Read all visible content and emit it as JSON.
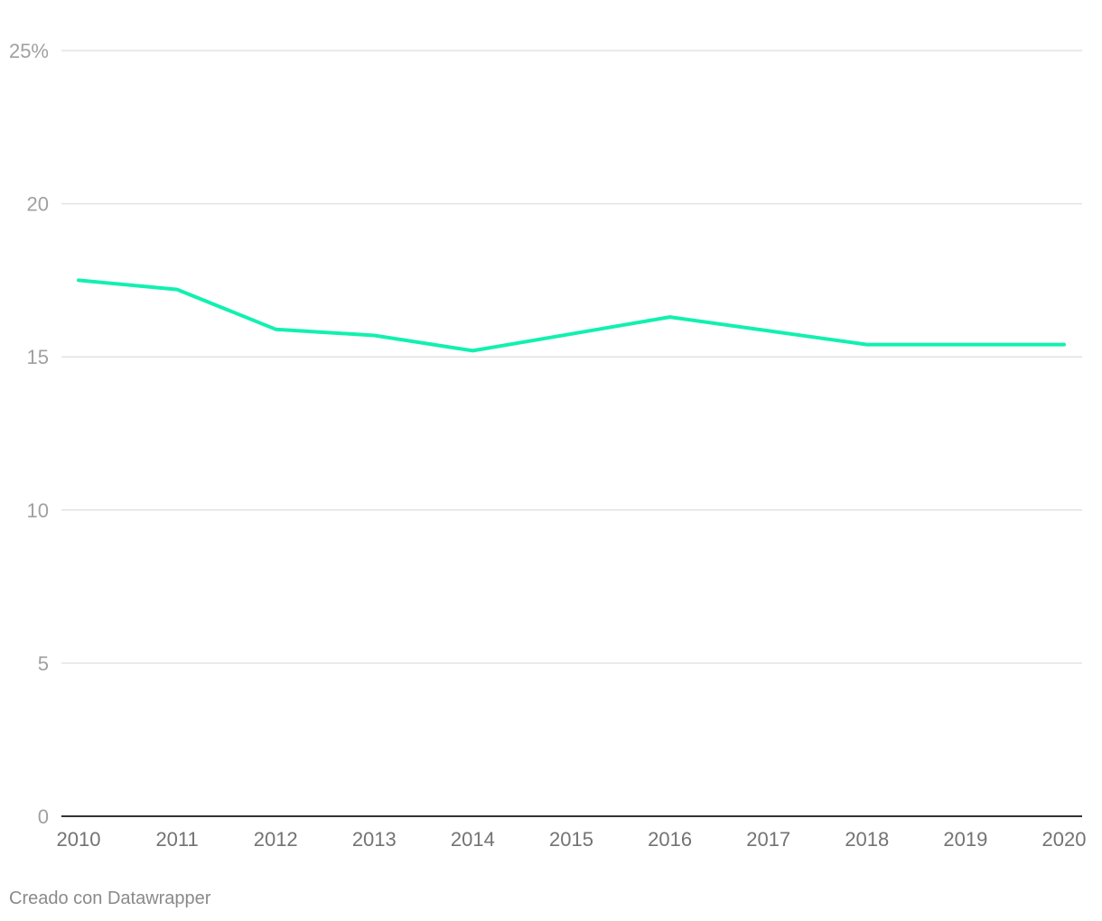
{
  "chart_data": {
    "type": "line",
    "title": "",
    "xlabel": "",
    "ylabel": "",
    "x": [
      "2010",
      "2011",
      "2012",
      "2013",
      "2014",
      "2015",
      "2016",
      "2017",
      "2018",
      "2019",
      "2020"
    ],
    "series": [
      {
        "name": "",
        "color": "#12f0b0",
        "values": [
          17.5,
          17.2,
          15.9,
          15.7,
          15.2,
          15.75,
          16.3,
          15.85,
          15.4,
          15.4,
          15.4
        ]
      }
    ],
    "ylim": [
      0,
      25
    ],
    "y_ticks": [
      {
        "value": 25,
        "label": "25%"
      },
      {
        "value": 20,
        "label": "20"
      },
      {
        "value": 15,
        "label": "15"
      },
      {
        "value": 10,
        "label": "10"
      },
      {
        "value": 5,
        "label": "5"
      },
      {
        "value": 0,
        "label": "0"
      }
    ],
    "grid": true,
    "legend": "none"
  },
  "footer": {
    "credit": "Creado con Datawrapper"
  }
}
